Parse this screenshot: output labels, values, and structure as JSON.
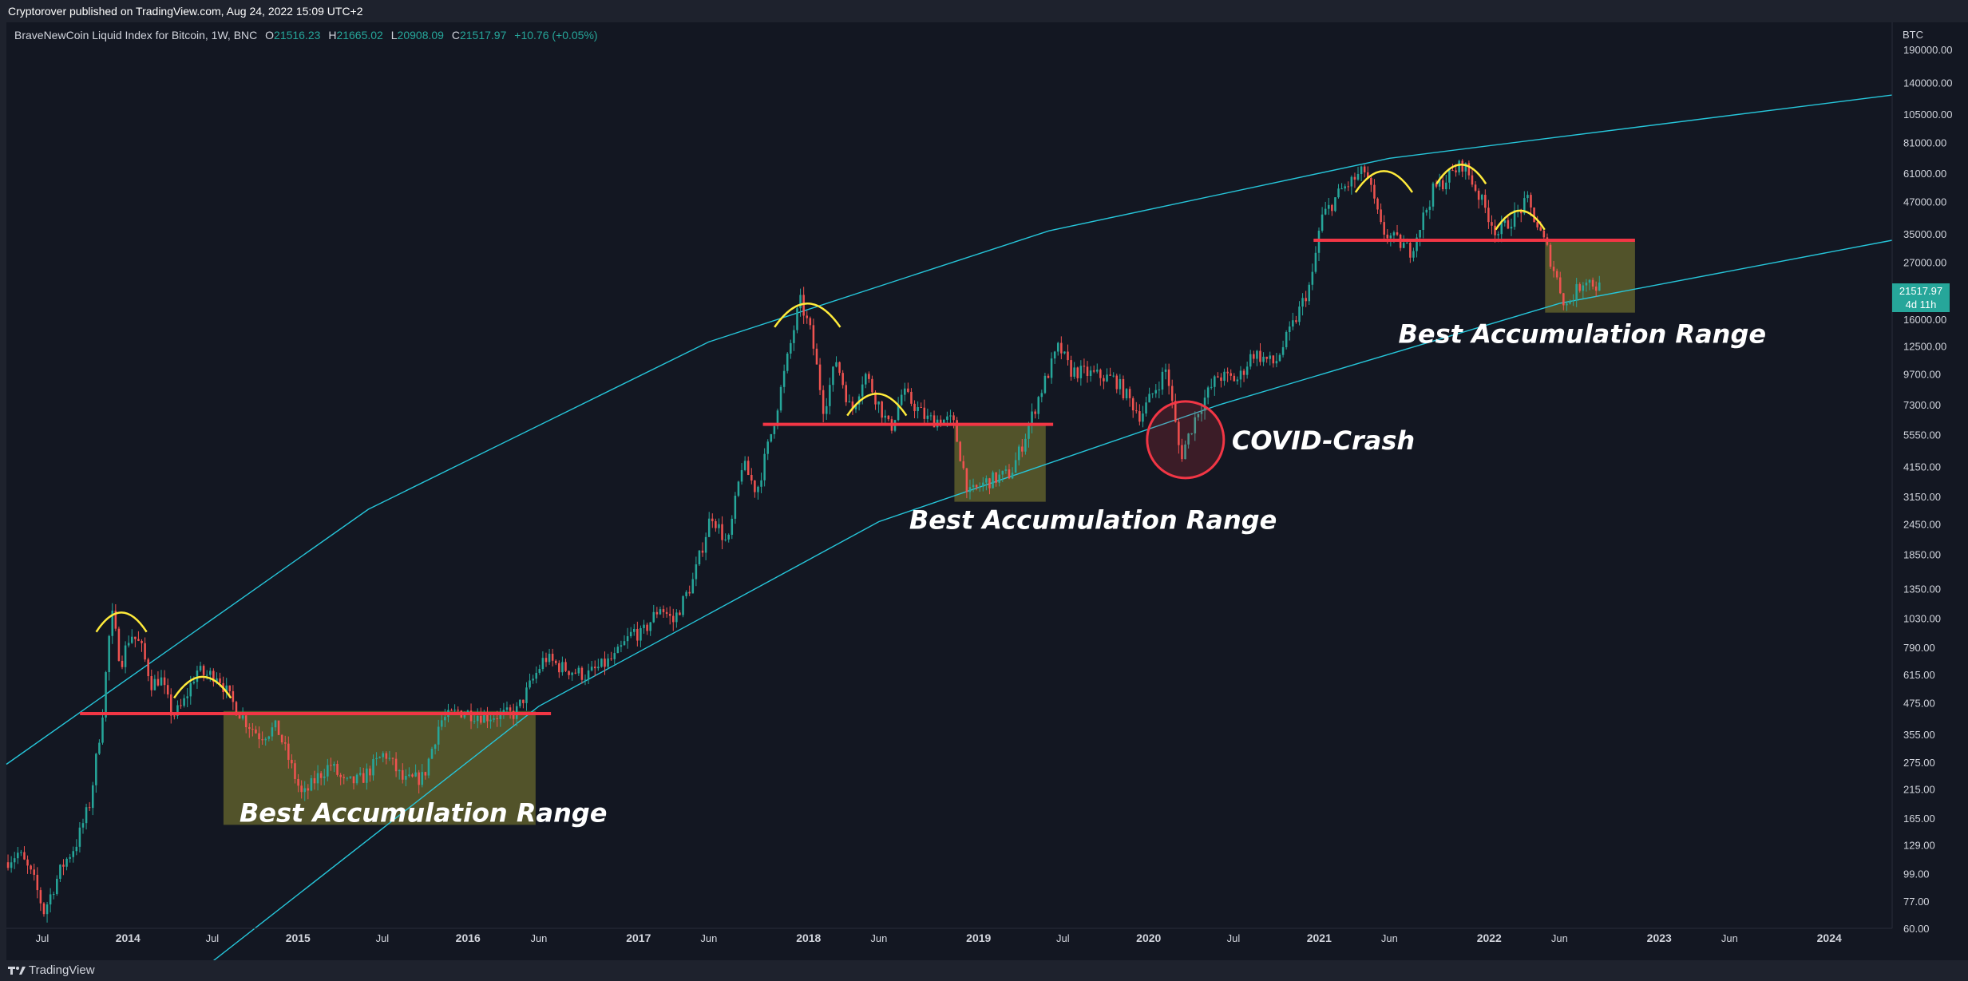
{
  "header": {
    "publisher_line": "Cryptorover published on TradingView.com, Aug 24, 2022 15:09 UTC+2"
  },
  "legend": {
    "symbol": "BraveNewCoin Liquid Index for Bitcoin, 1W, BNC",
    "open_label": "O",
    "open": "21516.23",
    "high_label": "H",
    "high": "21665.02",
    "low_label": "L",
    "low": "20908.09",
    "close_label": "C",
    "close": "21517.97",
    "change": "+10.76 (+0.05%)"
  },
  "price_axis": {
    "currency": "BTC"
  },
  "price_tag": {
    "value": "21517.97",
    "countdown": "4d 11h"
  },
  "footer": {
    "brand": "TradingView",
    "logo_icon": "tradingview-logo-icon"
  },
  "colors": {
    "background": "#131722",
    "up": "#26a69a",
    "down": "#ef5350",
    "support": "#f23645",
    "channel": "#26c6da",
    "arc": "#ffeb3b",
    "zone": "#6b6b2e"
  },
  "chart_data": {
    "type": "candlestick",
    "scale": "log",
    "ylim": [
      60,
      240000
    ],
    "xlim": [
      "2013-04-15",
      "2024-05-15"
    ],
    "y_ticks": [
      "190000.00",
      "140000.00",
      "105000.00",
      "81000.00",
      "61000.00",
      "47000.00",
      "35000.00",
      "27000.00",
      "21517.97",
      "16000.00",
      "12500.00",
      "9700.00",
      "7300.00",
      "5550.00",
      "4150.00",
      "3150.00",
      "2450.00",
      "1850.00",
      "1350.00",
      "1030.00",
      "790.00",
      "615.00",
      "475.00",
      "355.00",
      "275.00",
      "215.00",
      "165.00",
      "129.00",
      "99.00",
      "77.00",
      "60.00"
    ],
    "x_ticks": [
      {
        "label": "Jul",
        "date": "2013-07-01"
      },
      {
        "label": "2014",
        "date": "2014-01-01"
      },
      {
        "label": "Jul",
        "date": "2014-07-01"
      },
      {
        "label": "2015",
        "date": "2015-01-01"
      },
      {
        "label": "Jul",
        "date": "2015-07-01"
      },
      {
        "label": "2016",
        "date": "2016-01-01"
      },
      {
        "label": "Jun",
        "date": "2016-06-01"
      },
      {
        "label": "2017",
        "date": "2017-01-01"
      },
      {
        "label": "Jun",
        "date": "2017-06-01"
      },
      {
        "label": "2018",
        "date": "2018-01-01"
      },
      {
        "label": "Jun",
        "date": "2018-06-01"
      },
      {
        "label": "2019",
        "date": "2019-01-01"
      },
      {
        "label": "Jul",
        "date": "2019-07-01"
      },
      {
        "label": "2020",
        "date": "2020-01-01"
      },
      {
        "label": "Jul",
        "date": "2020-07-01"
      },
      {
        "label": "2021",
        "date": "2021-01-01"
      },
      {
        "label": "Jun",
        "date": "2021-06-01"
      },
      {
        "label": "2022",
        "date": "2022-01-01"
      },
      {
        "label": "Jun",
        "date": "2022-06-01"
      },
      {
        "label": "2023",
        "date": "2023-01-01"
      },
      {
        "label": "Jun",
        "date": "2023-06-01"
      },
      {
        "label": "2024",
        "date": "2024-01-01"
      }
    ],
    "price_path": [
      [
        "2013-04-15",
        110
      ],
      [
        "2013-05-15",
        120
      ],
      [
        "2013-06-15",
        95
      ],
      [
        "2013-07-08",
        70
      ],
      [
        "2013-08-15",
        105
      ],
      [
        "2013-09-15",
        130
      ],
      [
        "2013-10-15",
        190
      ],
      [
        "2013-11-10",
        420
      ],
      [
        "2013-11-30",
        1100
      ],
      [
        "2013-12-20",
        680
      ],
      [
        "2014-01-10",
        900
      ],
      [
        "2014-02-01",
        800
      ],
      [
        "2014-02-25",
        560
      ],
      [
        "2014-03-15",
        600
      ],
      [
        "2014-04-10",
        420
      ],
      [
        "2014-05-01",
        460
      ],
      [
        "2014-06-01",
        640
      ],
      [
        "2014-06-20",
        610
      ],
      [
        "2014-07-15",
        620
      ],
      [
        "2014-08-15",
        480
      ],
      [
        "2014-09-15",
        400
      ],
      [
        "2014-10-15",
        350
      ],
      [
        "2014-11-20",
        380
      ],
      [
        "2015-01-14",
        200
      ],
      [
        "2015-02-15",
        240
      ],
      [
        "2015-03-15",
        270
      ],
      [
        "2015-04-15",
        225
      ],
      [
        "2015-05-20",
        235
      ],
      [
        "2015-07-10",
        300
      ],
      [
        "2015-08-20",
        230
      ],
      [
        "2015-10-01",
        240
      ],
      [
        "2015-11-05",
        400
      ],
      [
        "2015-12-15",
        440
      ],
      [
        "2016-02-15",
        420
      ],
      [
        "2016-04-15",
        430
      ],
      [
        "2016-06-17",
        720
      ],
      [
        "2016-07-20",
        660
      ],
      [
        "2016-09-15",
        610
      ],
      [
        "2016-11-15",
        720
      ],
      [
        "2016-12-25",
        920
      ],
      [
        "2017-01-10",
        880
      ],
      [
        "2017-02-20",
        1150
      ],
      [
        "2017-03-20",
        1000
      ],
      [
        "2017-05-01",
        1450
      ],
      [
        "2017-06-10",
        2700
      ],
      [
        "2017-07-15",
        2000
      ],
      [
        "2017-08-15",
        4300
      ],
      [
        "2017-09-15",
        3300
      ],
      [
        "2017-10-20",
        6000
      ],
      [
        "2017-12-17",
        19000
      ],
      [
        "2018-01-10",
        14000
      ],
      [
        "2018-02-06",
        7000
      ],
      [
        "2018-03-05",
        11000
      ],
      [
        "2018-04-06",
        6800
      ],
      [
        "2018-05-05",
        9800
      ],
      [
        "2018-06-29",
        5800
      ],
      [
        "2018-07-25",
        8200
      ],
      [
        "2018-09-15",
        6400
      ],
      [
        "2018-11-10",
        6300
      ],
      [
        "2018-12-15",
        3200
      ],
      [
        "2019-01-20",
        3600
      ],
      [
        "2019-03-15",
        3900
      ],
      [
        "2019-04-10",
        5200
      ],
      [
        "2019-05-15",
        8000
      ],
      [
        "2019-06-26",
        12500
      ],
      [
        "2019-07-20",
        10000
      ],
      [
        "2019-09-01",
        9700
      ],
      [
        "2019-10-25",
        9200
      ],
      [
        "2019-12-18",
        6600
      ],
      [
        "2020-02-12",
        10200
      ],
      [
        "2020-03-13",
        4500
      ],
      [
        "2020-04-20",
        7000
      ],
      [
        "2020-06-01",
        9500
      ],
      [
        "2020-07-15",
        9200
      ],
      [
        "2020-08-15",
        11800
      ],
      [
        "2020-10-01",
        10600
      ],
      [
        "2020-11-15",
        16000
      ],
      [
        "2020-12-20",
        23000
      ],
      [
        "2021-01-08",
        40000
      ],
      [
        "2021-02-20",
        52000
      ],
      [
        "2021-04-14",
        63000
      ],
      [
        "2021-05-19",
        36000
      ],
      [
        "2021-07-20",
        30000
      ],
      [
        "2021-09-06",
        52000
      ],
      [
        "2021-11-10",
        67000
      ],
      [
        "2022-01-22",
        35000
      ],
      [
        "2022-03-28",
        47000
      ],
      [
        "2022-05-10",
        30000
      ],
      [
        "2022-06-18",
        18000
      ],
      [
        "2022-07-30",
        23500
      ],
      [
        "2022-08-24",
        21517.97
      ]
    ],
    "annotations": {
      "channel_upper": [
        [
          "2013-04-15",
          270
        ],
        [
          "2015-06-01",
          2800
        ],
        [
          "2017-06-01",
          13000
        ],
        [
          "2019-06-01",
          36000
        ],
        [
          "2021-06-01",
          70000
        ],
        [
          "2024-05-15",
          125000
        ]
      ],
      "channel_lower": [
        [
          "2014-06-01",
          40
        ],
        [
          "2016-06-01",
          460
        ],
        [
          "2018-06-01",
          2500
        ],
        [
          "2020-06-01",
          7300
        ],
        [
          "2022-06-01",
          18500
        ],
        [
          "2024-05-15",
          33000
        ]
      ],
      "support_lines": [
        {
          "from": "2013-09-20",
          "to": "2016-06-27",
          "price": 430
        },
        {
          "from": "2017-09-25",
          "to": "2019-06-10",
          "price": 6100
        },
        {
          "from": "2020-12-20",
          "to": "2022-11-10",
          "price": 33000
        }
      ],
      "zones": [
        {
          "from": "2014-07-25",
          "to": "2016-05-25",
          "low": 155,
          "high": 440,
          "label": "Best Accumulation Range"
        },
        {
          "from": "2018-11-10",
          "to": "2019-05-25",
          "low": 3000,
          "high": 6100,
          "label": "Best Accumulation Range"
        },
        {
          "from": "2022-05-01",
          "to": "2022-11-10",
          "low": 17000,
          "high": 33000,
          "label": "Best Accumulation Range"
        }
      ],
      "callout": {
        "date": "2020-03-20",
        "price": 5300,
        "label": "COVID-Crash"
      },
      "tops": [
        {
          "from": "2013-10-25",
          "to": "2014-02-10",
          "price": 1100
        },
        {
          "from": "2014-04-10",
          "to": "2014-08-10",
          "price": 600
        },
        {
          "from": "2017-10-20",
          "to": "2018-03-10",
          "price": 18000
        },
        {
          "from": "2018-03-25",
          "to": "2018-07-30",
          "price": 8000
        },
        {
          "from": "2021-03-20",
          "to": "2021-07-20",
          "price": 62000
        },
        {
          "from": "2021-09-10",
          "to": "2021-12-25",
          "price": 67000
        },
        {
          "from": "2022-01-15",
          "to": "2022-04-30",
          "price": 44000
        }
      ]
    }
  }
}
